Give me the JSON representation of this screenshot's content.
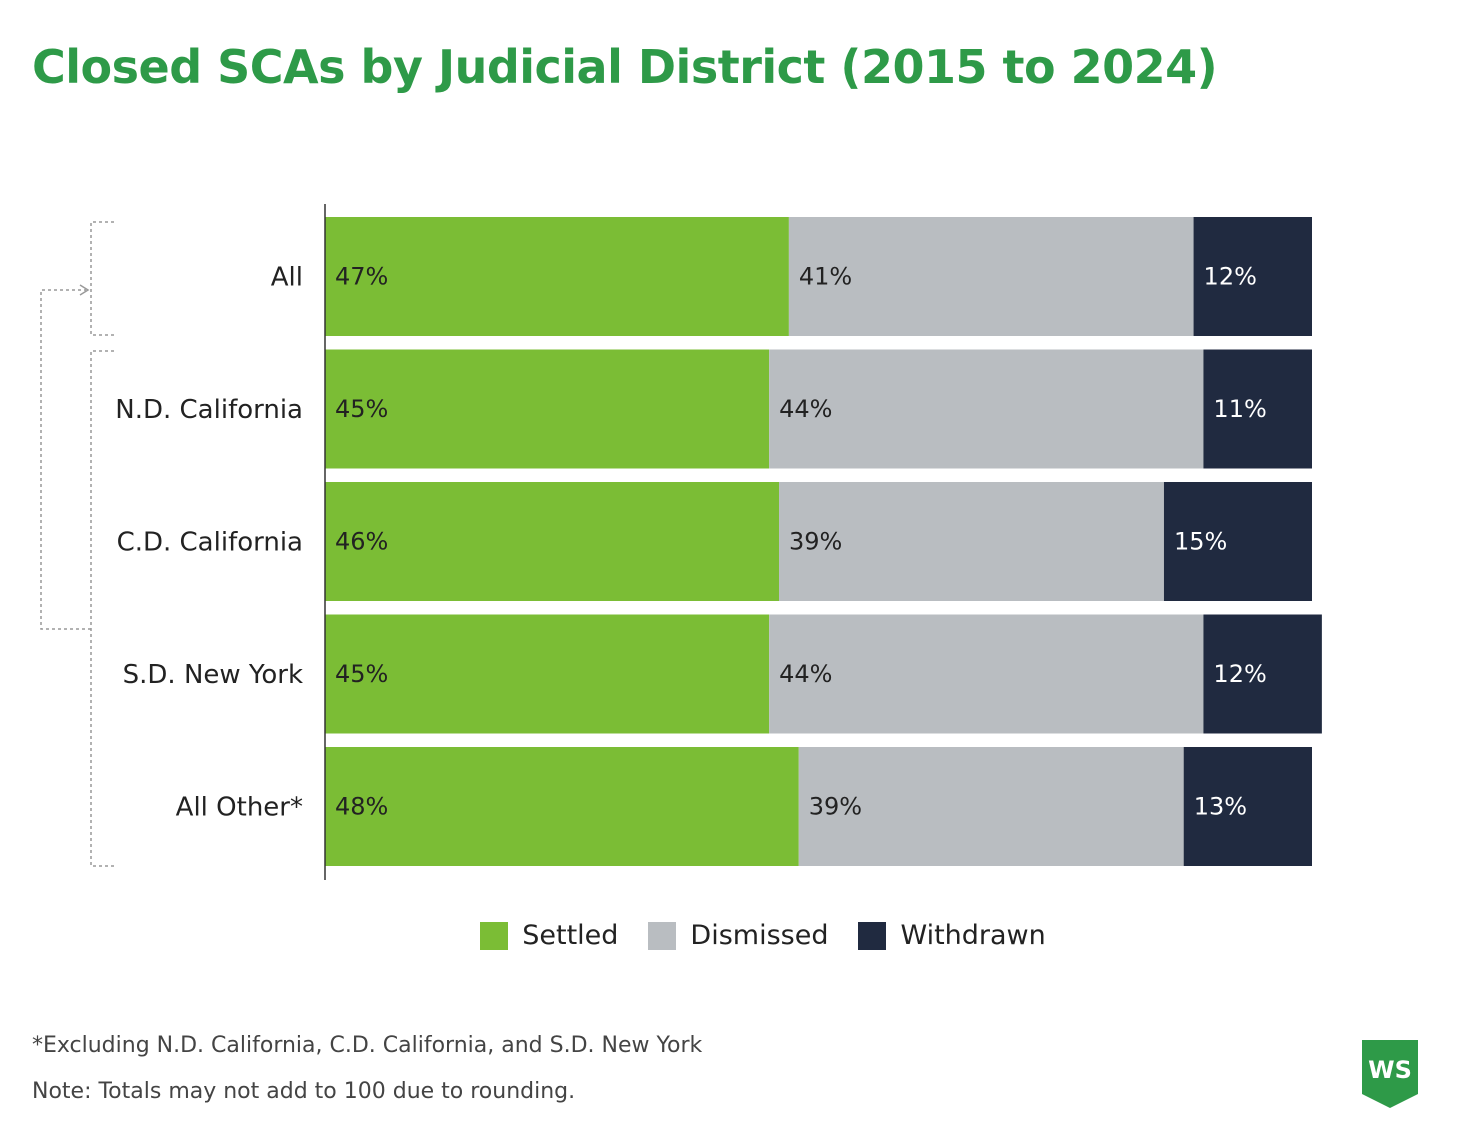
{
  "chart_data": {
    "type": "bar",
    "orientation": "horizontal",
    "stacked": true,
    "title": "Closed SCAs by Judicial District (2015 to 2024)",
    "categories": [
      "All",
      "N.D. California",
      "C.D. California",
      "S.D. New York",
      "All Other*"
    ],
    "series": [
      {
        "name": "Settled",
        "color": "#7bbd35",
        "values": [
          47,
          45,
          46,
          45,
          48
        ],
        "labels": [
          "47%",
          "45%",
          "46%",
          "45%",
          "48%"
        ]
      },
      {
        "name": "Dismissed",
        "color": "#b9bdc1",
        "values": [
          41,
          44,
          39,
          44,
          39
        ],
        "labels": [
          "41%",
          "44%",
          "39%",
          "44%",
          "39%"
        ]
      },
      {
        "name": "Withdrawn",
        "color": "#202a40",
        "values": [
          12,
          11,
          15,
          12,
          13
        ],
        "labels": [
          "12%",
          "11%",
          "15%",
          "12%",
          "13%"
        ]
      }
    ],
    "legend": "bottom",
    "grid": false
  },
  "footnotes": {
    "line1": "*Excluding N.D. California, C.D. California, and S.D. New York",
    "line2": "Note: Totals may not add to 100 due to rounding."
  },
  "logo": {
    "text": "WS",
    "color": "#2e9a48"
  }
}
